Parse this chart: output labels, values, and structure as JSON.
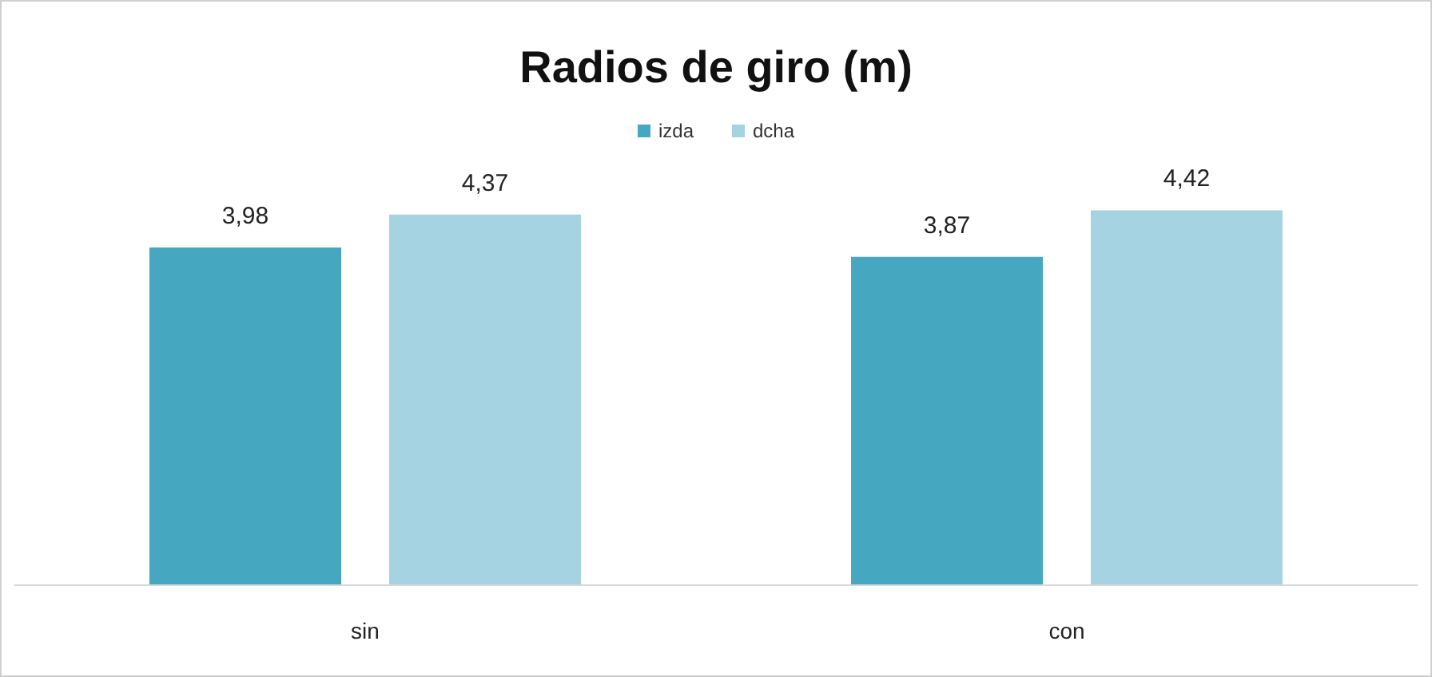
{
  "chart_data": {
    "type": "bar",
    "title": "Radios de giro (m)",
    "categories": [
      "sin",
      "con"
    ],
    "series": [
      {
        "name": "izda",
        "color": "#45a8c0",
        "values": [
          3.98,
          3.87
        ],
        "value_labels": [
          "3,98",
          "3,87"
        ]
      },
      {
        "name": "dcha",
        "color": "#a6d3e2",
        "values": [
          4.37,
          4.42
        ],
        "value_labels": [
          "4,37",
          "4,42"
        ]
      }
    ],
    "tick_labels": "x",
    "grid": false,
    "legend": "top"
  }
}
